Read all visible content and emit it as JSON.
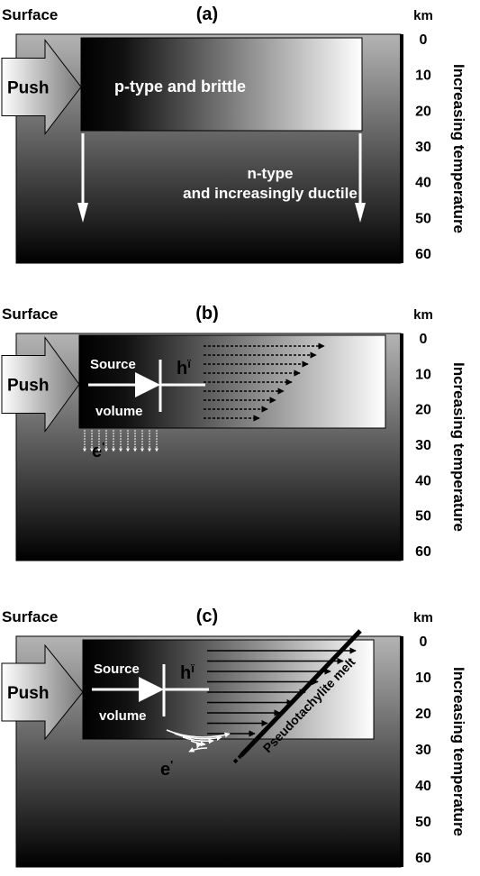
{
  "panels": [
    {
      "label": "(a)",
      "surface": "Surface",
      "km": "km",
      "depth_ticks": [
        0,
        10,
        20,
        30,
        40,
        50,
        60
      ],
      "axis_label": "Increasing temperature",
      "push": "Push",
      "texts": [
        "p-type and brittle",
        "n-type",
        "and increasingly ductile"
      ]
    },
    {
      "label": "(b)",
      "surface": "Surface",
      "km": "km",
      "depth_ticks": [
        0,
        10,
        20,
        30,
        40,
        50,
        60
      ],
      "axis_label": "Increasing temperature",
      "push": "Push",
      "source": "Source",
      "volume": "volume",
      "hole": {
        "base": "h",
        "sup": "ï"
      },
      "electron": {
        "base": "e",
        "sup": "'"
      }
    },
    {
      "label": "(c)",
      "surface": "Surface",
      "km": "km",
      "depth_ticks": [
        0,
        10,
        20,
        30,
        40,
        50,
        60
      ],
      "axis_label": "Increasing temperature",
      "push": "Push",
      "source": "Source",
      "volume": "volume",
      "hole": {
        "base": "h",
        "sup": "ï"
      },
      "electron": {
        "base": "e",
        "sup": "'"
      },
      "melt": "Pseudotachylite melt"
    }
  ]
}
